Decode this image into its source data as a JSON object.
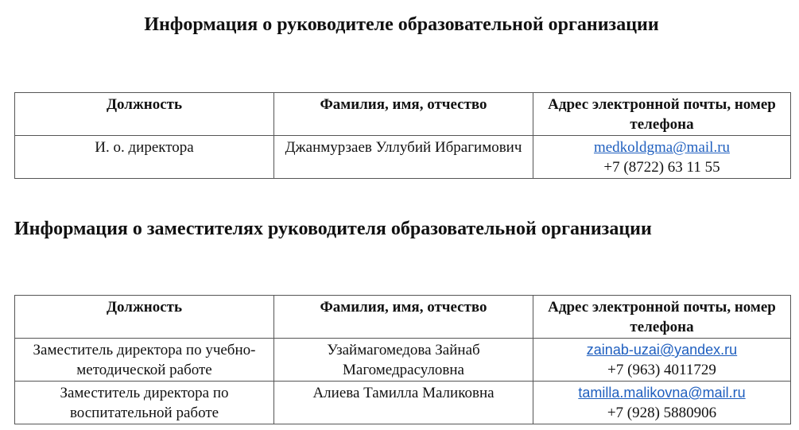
{
  "heading_head": "Информация о руководителе образовательной организации",
  "heading_deputies": "Информация о заместителях руководителя образовательной организации",
  "columns": [
    "Должность",
    "Фамилия, имя, отчество",
    "Адрес электронной почты, номер телефона"
  ],
  "head_table": [
    {
      "position": "И. о. директора",
      "name": "Джанмурзаев Уллубий Ибрагимович",
      "email": "medkoldgma@mail.ru",
      "phone": "+7 (8722) 63 11 55"
    }
  ],
  "deputies_table": [
    {
      "position": "Заместитель директора по учебно-методической работе",
      "name": "Узаймагомедова Зайнаб Магомедрасуловна",
      "email": "zainab-uzai@yandex.ru",
      "phone": "+7 (963) 4011729"
    },
    {
      "position": "Заместитель директора по воспитательной работе",
      "name": "Алиева Тамилла Маликовна",
      "email": "tamilla.malikovna@mail.ru",
      "phone": "+7 (928) 5880906"
    }
  ],
  "link_color": "#1f5fbf"
}
